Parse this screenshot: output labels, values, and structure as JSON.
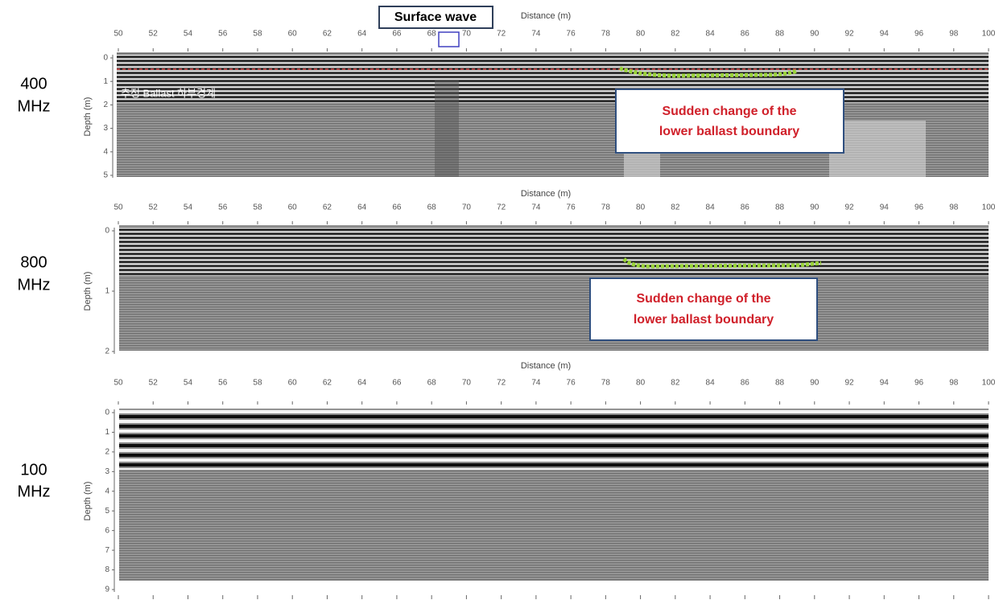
{
  "header": {
    "callout": "Surface wave"
  },
  "panels": [
    {
      "frequency": [
        "400",
        "MHz"
      ],
      "x_label": "Distance (m)",
      "y_label": "Depth (m)",
      "xlim": [
        50,
        100
      ],
      "xticks": [
        50,
        52,
        54,
        56,
        58,
        60,
        62,
        64,
        66,
        68,
        70,
        72,
        74,
        76,
        78,
        80,
        82,
        84,
        86,
        88,
        90,
        92,
        94,
        96,
        98,
        100
      ],
      "ylim": [
        0,
        5
      ],
      "yticks": [
        0,
        1,
        2,
        3,
        4,
        5
      ],
      "note": "추정 Ballast 하부경계",
      "annotation": [
        "Sudden change of the",
        "lower ballast boundary"
      ]
    },
    {
      "frequency": [
        "800",
        "MHz"
      ],
      "x_label": "Distance (m)",
      "y_label": "Depth (m)",
      "xlim": [
        50,
        100
      ],
      "xticks": [
        50,
        52,
        54,
        56,
        58,
        60,
        62,
        64,
        66,
        68,
        70,
        72,
        74,
        76,
        78,
        80,
        82,
        84,
        86,
        88,
        90,
        92,
        94,
        96,
        98,
        100
      ],
      "ylim": [
        0,
        2
      ],
      "yticks": [
        0,
        1,
        2
      ],
      "annotation": [
        "Sudden change of the",
        "lower ballast boundary"
      ]
    },
    {
      "frequency": [
        "100",
        "MHz"
      ],
      "x_label": "Distance (m)",
      "y_label": "Depth (m)",
      "xlim": [
        50,
        100
      ],
      "xticks": [
        50,
        52,
        54,
        56,
        58,
        60,
        62,
        64,
        66,
        68,
        70,
        72,
        74,
        76,
        78,
        80,
        82,
        84,
        86,
        88,
        90,
        92,
        94,
        96,
        98,
        100
      ],
      "ylim": [
        0,
        9
      ],
      "yticks": [
        0,
        1,
        2,
        3,
        4,
        5,
        6,
        7,
        8,
        9
      ]
    }
  ]
}
